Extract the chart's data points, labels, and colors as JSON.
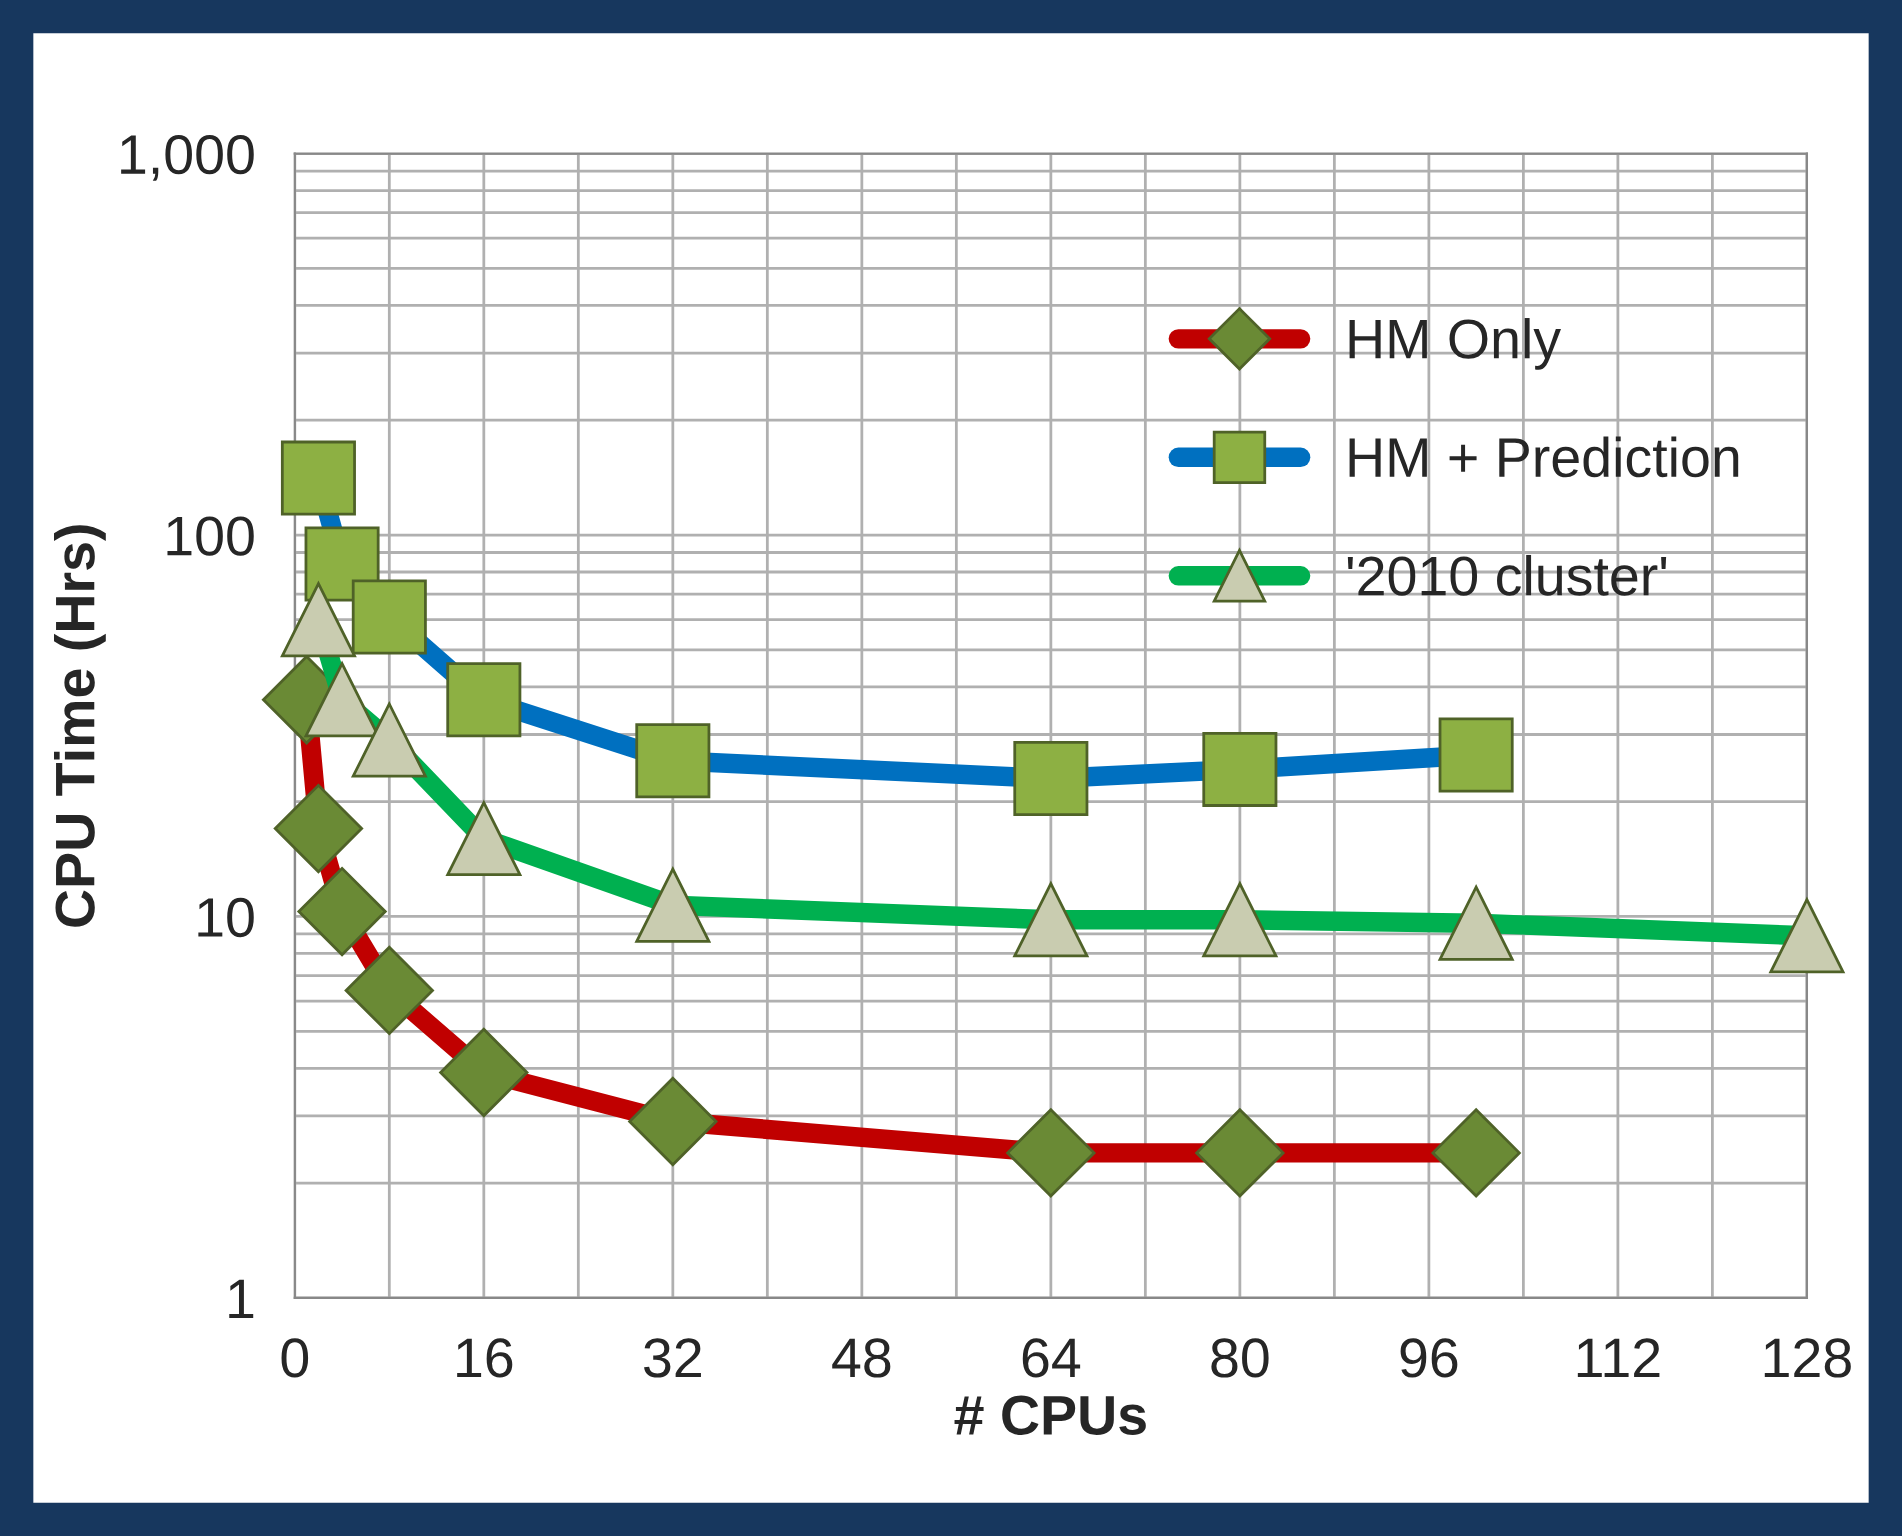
{
  "chart_data": {
    "type": "line",
    "xlabel": "# CPUs",
    "ylabel": "CPU Time (Hrs)",
    "log": "y",
    "xlim": [
      0,
      128
    ],
    "ylim": [
      1,
      1000
    ],
    "xticks": [
      0,
      {
        "value": 8,
        "label": null
      },
      16,
      {
        "value": 24,
        "label": null
      },
      32,
      {
        "value": 40,
        "label": null
      },
      48,
      {
        "value": 56,
        "label": null
      },
      64,
      {
        "value": 72,
        "label": null
      },
      80,
      {
        "value": 88,
        "label": null
      },
      96,
      {
        "value": 104,
        "label": null
      },
      112,
      {
        "value": 120,
        "label": null
      },
      128
    ],
    "yticks": [
      1,
      {
        "value": 2,
        "label": null
      },
      {
        "value": 3,
        "label": null
      },
      {
        "value": 4,
        "label": null
      },
      {
        "value": 5,
        "label": null
      },
      {
        "value": 6,
        "label": null
      },
      {
        "value": 7,
        "label": null
      },
      {
        "value": 8,
        "label": null
      },
      {
        "value": 9,
        "label": null
      },
      10,
      {
        "value": 20,
        "label": null
      },
      {
        "value": 30,
        "label": null
      },
      {
        "value": 40,
        "label": null
      },
      {
        "value": 50,
        "label": null
      },
      {
        "value": 60,
        "label": null
      },
      {
        "value": 70,
        "label": null
      },
      {
        "value": 80,
        "label": null
      },
      {
        "value": 90,
        "label": null
      },
      100,
      {
        "value": 200,
        "label": null
      },
      {
        "value": 300,
        "label": null
      },
      {
        "value": 400,
        "label": null
      },
      {
        "value": 500,
        "label": null
      },
      {
        "value": 600,
        "label": null
      },
      {
        "value": 700,
        "label": null
      },
      {
        "value": 800,
        "label": null
      },
      {
        "value": 900,
        "label": null
      },
      {
        "value": 1000,
        "label": "1,000"
      }
    ],
    "grid": true,
    "legend": "top right",
    "series": [
      {
        "name": "HM Only",
        "color": "#c00000",
        "marker": "diamond",
        "x": [
          1,
          2,
          4,
          8,
          16,
          32,
          64,
          80,
          100
        ],
        "values": [
          37,
          17,
          10.3,
          6.4,
          3.9,
          2.9,
          2.4,
          2.4,
          2.4
        ]
      },
      {
        "name": "HM + Prediction",
        "color": "#0070c0",
        "marker": "square",
        "x": [
          2,
          4,
          8,
          16,
          32,
          64,
          80,
          100
        ],
        "values": [
          141,
          84,
          61,
          37,
          25.6,
          23,
          24.3,
          26.5
        ]
      },
      {
        "name": "'2010 cluster'",
        "color": "#00b050",
        "marker": "triangle",
        "x": [
          2,
          4,
          8,
          16,
          32,
          64,
          80,
          100,
          128
        ],
        "values": [
          60,
          37,
          29,
          16,
          10.7,
          9.8,
          9.8,
          9.6,
          8.9
        ]
      }
    ]
  }
}
